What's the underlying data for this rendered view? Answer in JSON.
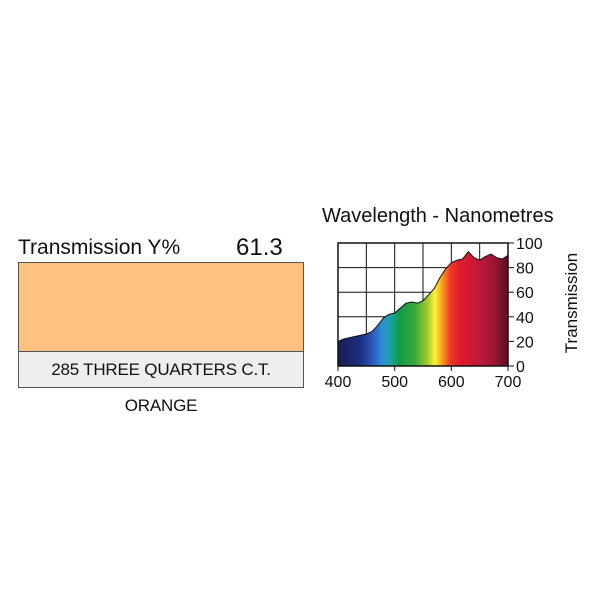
{
  "filter": {
    "transmission_label": "Transmission Y%",
    "transmission_value": "61.3",
    "name": "285 THREE QUARTERS C.T. ORANGE",
    "swatch_color": "#FFC17F"
  },
  "chart_data": {
    "type": "area",
    "title": "Wavelength - Nanometres",
    "xlabel": "",
    "ylabel": "Transmission",
    "xlim": [
      400,
      700
    ],
    "ylim": [
      0,
      100
    ],
    "xticks": [
      400,
      500,
      600,
      700
    ],
    "yticks": [
      0,
      20,
      40,
      60,
      80,
      100
    ],
    "grid": true,
    "x": [
      400,
      410,
      420,
      430,
      440,
      450,
      460,
      470,
      480,
      490,
      500,
      510,
      520,
      530,
      540,
      550,
      560,
      570,
      580,
      590,
      600,
      610,
      620,
      630,
      640,
      650,
      660,
      670,
      680,
      690,
      700
    ],
    "values": [
      20,
      22,
      23,
      24,
      25,
      26,
      28,
      33,
      39,
      42,
      43,
      47,
      51,
      52,
      51,
      53,
      58,
      63,
      72,
      79,
      84,
      86,
      87,
      93,
      88,
      86,
      89,
      91,
      88,
      87,
      90
    ]
  }
}
